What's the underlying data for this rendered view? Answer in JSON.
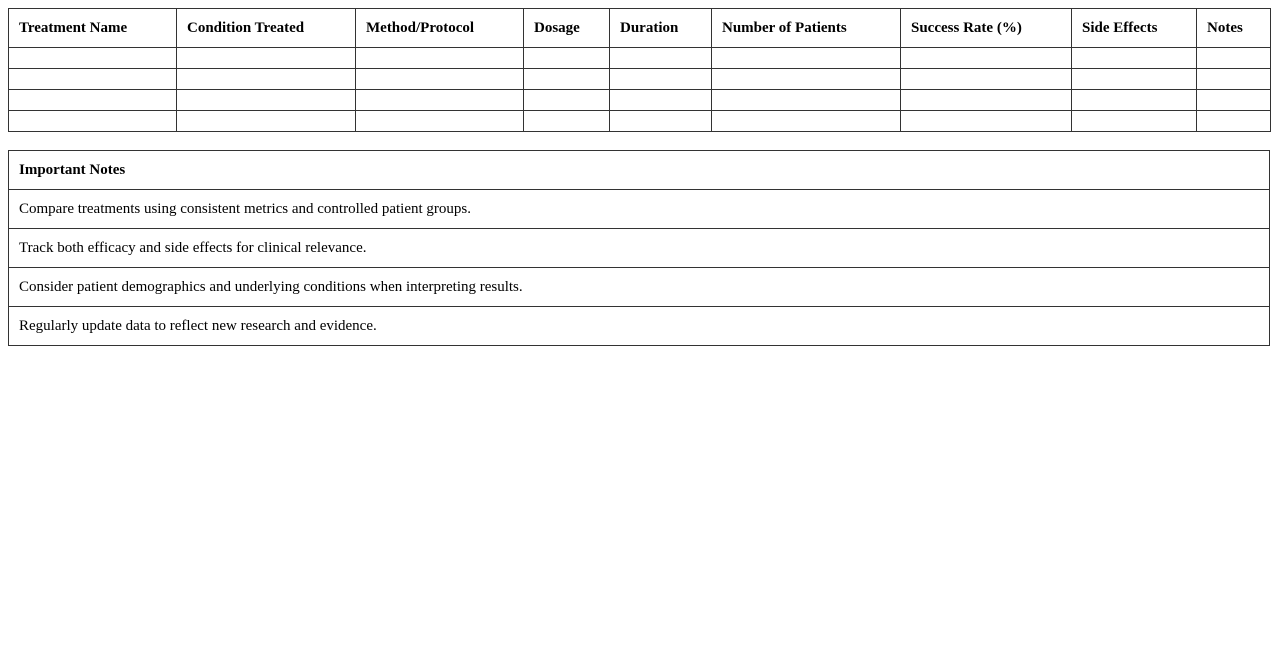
{
  "treatments_table": {
    "headers": [
      "Treatment Name",
      "Condition Treated",
      "Method/Protocol",
      "Dosage",
      "Duration",
      "Number of Patients",
      "Success Rate (%)",
      "Side Effects",
      "Notes"
    ],
    "rows": [
      [
        "",
        "",
        "",
        "",
        "",
        "",
        "",
        "",
        ""
      ],
      [
        "",
        "",
        "",
        "",
        "",
        "",
        "",
        "",
        ""
      ],
      [
        "",
        "",
        "",
        "",
        "",
        "",
        "",
        "",
        ""
      ],
      [
        "",
        "",
        "",
        "",
        "",
        "",
        "",
        "",
        ""
      ]
    ]
  },
  "important_notes": {
    "title": "Important Notes",
    "items": [
      "Compare treatments using consistent metrics and controlled patient groups.",
      "Track both efficacy and side effects for clinical relevance.",
      "Consider patient demographics and underlying conditions when interpreting results.",
      "Regularly update data to reflect new research and evidence."
    ]
  }
}
